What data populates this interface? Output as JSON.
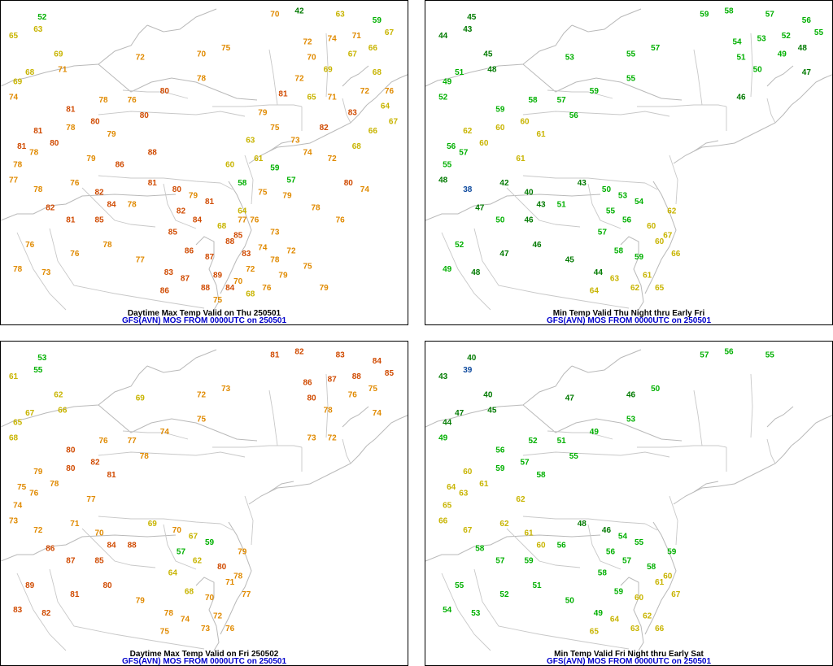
{
  "colors": {
    "c38": "#0e4a9e",
    "c39": "#0e4a9e",
    "c40": "#007a00",
    "c48": "#007a00",
    "c49": "#00b000",
    "c59": "#00b000",
    "c60": "#c8b400",
    "c69": "#c8b400",
    "c70": "#e08a00",
    "c79": "#e08a00",
    "c80": "#d04a00",
    "c89": "#d04a00"
  },
  "panels": [
    {
      "title": "Daytime Max Temp Valid on Thu 250501",
      "subtitle": "GFS(AVN) MOS FROM 0000UTC on 250501",
      "values": [
        52,
        63,
        65,
        69,
        71,
        69,
        68,
        74,
        72,
        70,
        75,
        80,
        78,
        78,
        76,
        80,
        81,
        80,
        79,
        78,
        81,
        80,
        79,
        78,
        81,
        78,
        77,
        78,
        76,
        82,
        84,
        85,
        82,
        81,
        78,
        76,
        78,
        73,
        76,
        78,
        77,
        83,
        81,
        80,
        79,
        81,
        82,
        84,
        85,
        86,
        87,
        88,
        89,
        88,
        87,
        86,
        84,
        83,
        85,
        64,
        68,
        70,
        42,
        63,
        59,
        67,
        72,
        74,
        71,
        70,
        69,
        67,
        66,
        68,
        65,
        71,
        72,
        76,
        79,
        75,
        73,
        74,
        72,
        68,
        66,
        67,
        64,
        63,
        61,
        59,
        57,
        58,
        60,
        75,
        79,
        76,
        73,
        77,
        74,
        72,
        70,
        68,
        75,
        78,
        79,
        76,
        72,
        81,
        83,
        82,
        80,
        78,
        76,
        74,
        72,
        75,
        79,
        88,
        86
      ]
    },
    {
      "title": "Min Temp Valid Thu Night thru Early Fri",
      "subtitle": "GFS(AVN) MOS FROM 0000UTC on 250501",
      "values": [
        45,
        43,
        44,
        45,
        48,
        49,
        51,
        52,
        53,
        55,
        57,
        59,
        55,
        58,
        57,
        56,
        59,
        60,
        61,
        60,
        62,
        60,
        61,
        57,
        56,
        55,
        48,
        38,
        42,
        40,
        43,
        46,
        47,
        50,
        51,
        52,
        49,
        48,
        47,
        46,
        45,
        44,
        43,
        50,
        53,
        54,
        55,
        56,
        57,
        58,
        59,
        60,
        61,
        62,
        63,
        64,
        65,
        66,
        67,
        62,
        60,
        59,
        58,
        57,
        56,
        55,
        54,
        53,
        52,
        51,
        50,
        49,
        48,
        47,
        46
      ]
    },
    {
      "title": "Daytime Max Temp Valid on Fri 250502",
      "subtitle": "GFS(AVN) MOS FROM 0000UTC on 250501",
      "values": [
        53,
        55,
        61,
        62,
        66,
        65,
        67,
        68,
        69,
        72,
        73,
        74,
        75,
        76,
        77,
        78,
        80,
        82,
        81,
        80,
        79,
        78,
        77,
        76,
        75,
        74,
        73,
        72,
        71,
        70,
        84,
        85,
        86,
        87,
        88,
        89,
        83,
        82,
        81,
        80,
        79,
        78,
        69,
        70,
        67,
        59,
        57,
        62,
        64,
        68,
        70,
        71,
        72,
        73,
        74,
        75,
        76,
        77,
        78,
        79,
        80,
        81,
        82,
        83,
        84,
        85,
        86,
        87,
        88,
        80,
        78,
        76,
        75,
        74,
        73,
        72
      ]
    },
    {
      "title": "Min Temp Valid Fri Night thru Early Sat",
      "subtitle": "GFS(AVN) MOS FROM 0000UTC on 250501",
      "values": [
        40,
        39,
        43,
        40,
        45,
        44,
        47,
        49,
        47,
        46,
        50,
        49,
        53,
        52,
        51,
        55,
        56,
        57,
        58,
        59,
        60,
        61,
        62,
        63,
        64,
        65,
        66,
        67,
        62,
        61,
        60,
        59,
        58,
        57,
        56,
        55,
        54,
        53,
        52,
        51,
        50,
        49,
        48,
        46,
        54,
        55,
        56,
        57,
        58,
        59,
        60,
        61,
        62,
        63,
        64,
        65,
        66,
        67,
        60,
        59,
        58,
        57,
        56,
        55
      ]
    }
  ]
}
